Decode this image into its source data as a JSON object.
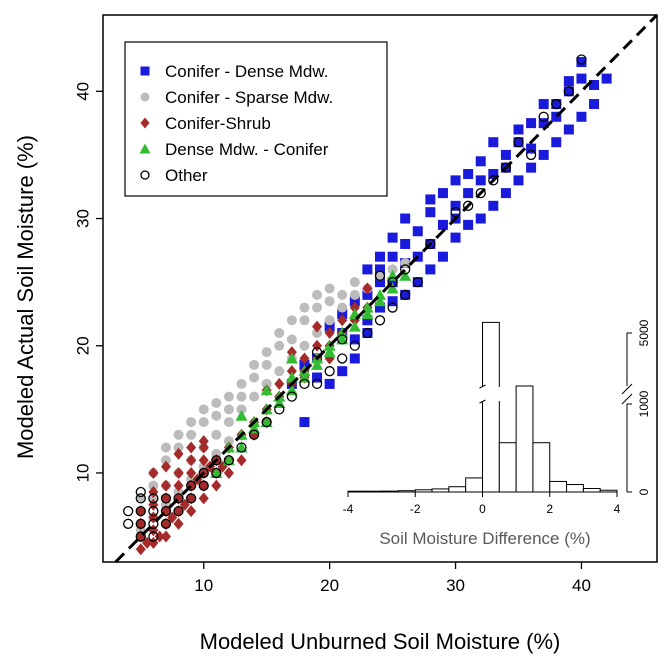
{
  "chart_data": {
    "type": "scatter",
    "xlabel": "Modeled Unburned Soil Moisture (%)",
    "ylabel": "Modeled Actual Soil Moisture (%)",
    "xlim": [
      2,
      46
    ],
    "ylim": [
      3,
      46
    ],
    "xticks": [
      10,
      20,
      30,
      40
    ],
    "yticks": [
      10,
      20,
      30,
      40
    ],
    "reference_line": "1:1 dashed line",
    "legend_position": "top-left",
    "series": [
      {
        "name": "Conifer - Dense Mdw.",
        "marker": "square",
        "color": "#1a1adc",
        "points": [
          [
            18,
            14
          ],
          [
            19,
            17.5
          ],
          [
            20,
            17
          ],
          [
            21,
            18
          ],
          [
            22,
            19
          ],
          [
            21,
            21
          ],
          [
            22,
            20.5
          ],
          [
            23,
            22
          ],
          [
            23,
            21
          ],
          [
            24,
            23
          ],
          [
            25,
            23.5
          ],
          [
            25,
            25
          ],
          [
            24,
            26
          ],
          [
            26,
            24
          ],
          [
            26,
            26.5
          ],
          [
            27,
            25
          ],
          [
            27,
            27
          ],
          [
            28,
            26
          ],
          [
            28,
            28
          ],
          [
            29,
            27
          ],
          [
            29,
            29.5
          ],
          [
            30,
            28.5
          ],
          [
            30,
            31
          ],
          [
            30,
            33
          ],
          [
            31,
            29.5
          ],
          [
            31,
            32
          ],
          [
            32,
            30
          ],
          [
            32,
            33
          ],
          [
            33,
            31
          ],
          [
            33,
            33.5
          ],
          [
            34,
            32
          ],
          [
            34,
            34
          ],
          [
            35,
            33
          ],
          [
            35,
            36
          ],
          [
            36,
            34
          ],
          [
            36,
            35.5
          ],
          [
            37,
            35
          ],
          [
            37,
            37.5
          ],
          [
            38,
            36
          ],
          [
            38,
            38
          ],
          [
            39,
            37
          ],
          [
            39,
            40
          ],
          [
            40,
            38
          ],
          [
            40,
            41
          ],
          [
            41,
            39
          ],
          [
            41,
            40.5
          ],
          [
            42,
            41
          ],
          [
            38,
            39
          ],
          [
            36,
            37.5
          ],
          [
            33,
            36
          ],
          [
            32,
            34.5
          ],
          [
            31,
            33.5
          ],
          [
            29,
            32
          ],
          [
            28,
            30.5
          ],
          [
            27,
            29
          ],
          [
            26,
            28
          ],
          [
            25,
            27
          ],
          [
            24,
            25
          ],
          [
            23,
            24
          ],
          [
            22,
            23.5
          ],
          [
            21,
            22.5
          ],
          [
            20,
            21.5
          ],
          [
            19,
            19
          ],
          [
            18,
            18.5
          ],
          [
            17,
            17
          ],
          [
            37,
            39
          ],
          [
            35,
            37
          ],
          [
            34,
            35
          ],
          [
            39,
            40.8
          ],
          [
            40,
            42.3
          ],
          [
            26,
            30
          ],
          [
            28,
            31.5
          ],
          [
            30,
            30
          ],
          [
            25,
            28.5
          ],
          [
            24,
            27
          ],
          [
            23,
            26
          ]
        ]
      },
      {
        "name": "Conifer - Sparse Mdw.",
        "marker": "circle",
        "color": "#bcbcbc",
        "points": [
          [
            5,
            7
          ],
          [
            6,
            8
          ],
          [
            6,
            10
          ],
          [
            7,
            9
          ],
          [
            7,
            11
          ],
          [
            8,
            10
          ],
          [
            8,
            12
          ],
          [
            9,
            11
          ],
          [
            9,
            13
          ],
          [
            10,
            12
          ],
          [
            10,
            14
          ],
          [
            11,
            13
          ],
          [
            11,
            14.5
          ],
          [
            12,
            14
          ],
          [
            12,
            15
          ],
          [
            13,
            15
          ],
          [
            13,
            16
          ],
          [
            14,
            16
          ],
          [
            14,
            17.5
          ],
          [
            15,
            17
          ],
          [
            15,
            18.5
          ],
          [
            16,
            18
          ],
          [
            16,
            20
          ],
          [
            17,
            19
          ],
          [
            17,
            20.5
          ],
          [
            18,
            20
          ],
          [
            18,
            22
          ],
          [
            19,
            21
          ],
          [
            19,
            23
          ],
          [
            20,
            22
          ],
          [
            20,
            23.5
          ],
          [
            21,
            23
          ],
          [
            21,
            24
          ],
          [
            22,
            24
          ],
          [
            22,
            25
          ],
          [
            23,
            24.5
          ],
          [
            24,
            25.5
          ],
          [
            25,
            26
          ],
          [
            26,
            26.5
          ],
          [
            7,
            12
          ],
          [
            8,
            13
          ],
          [
            9,
            14
          ],
          [
            10,
            15
          ],
          [
            11,
            15.5
          ],
          [
            12,
            16
          ],
          [
            13,
            17
          ],
          [
            14,
            18.5
          ],
          [
            15,
            19.5
          ],
          [
            16,
            21
          ],
          [
            17,
            22
          ],
          [
            18,
            23
          ],
          [
            19,
            24
          ],
          [
            20,
            24.5
          ],
          [
            6,
            9
          ],
          [
            5,
            8
          ],
          [
            9,
            9.5
          ],
          [
            10,
            10.5
          ],
          [
            11,
            11.5
          ],
          [
            12,
            12.5
          ],
          [
            6,
            6.5
          ],
          [
            5,
            5.5
          ],
          [
            7,
            7.5
          ],
          [
            8,
            8.5
          ]
        ]
      },
      {
        "name": "Conifer-Shrub",
        "marker": "diamond",
        "color": "#a52a2a",
        "points": [
          [
            5,
            4
          ],
          [
            5,
            5
          ],
          [
            5,
            6
          ],
          [
            5,
            7
          ],
          [
            6,
            4.5
          ],
          [
            6,
            5.5
          ],
          [
            6,
            6.5
          ],
          [
            6,
            7.5
          ],
          [
            6,
            8.5
          ],
          [
            7,
            5
          ],
          [
            7,
            6
          ],
          [
            7,
            7
          ],
          [
            7,
            8
          ],
          [
            7,
            9
          ],
          [
            8,
            6
          ],
          [
            8,
            7
          ],
          [
            8,
            8
          ],
          [
            8,
            9
          ],
          [
            8,
            10
          ],
          [
            9,
            7
          ],
          [
            9,
            8
          ],
          [
            9,
            9
          ],
          [
            9,
            10
          ],
          [
            9,
            11
          ],
          [
            10,
            8
          ],
          [
            10,
            9
          ],
          [
            10,
            10
          ],
          [
            10,
            11
          ],
          [
            10,
            12
          ],
          [
            11,
            9
          ],
          [
            11,
            10
          ],
          [
            11,
            11
          ],
          [
            12,
            10
          ],
          [
            12,
            11
          ],
          [
            12,
            12
          ],
          [
            13,
            11
          ],
          [
            13,
            13
          ],
          [
            14,
            13
          ],
          [
            14,
            14
          ],
          [
            15,
            14
          ],
          [
            15,
            15
          ],
          [
            16,
            16
          ],
          [
            16,
            17
          ],
          [
            17,
            17
          ],
          [
            17,
            18
          ],
          [
            18,
            18
          ],
          [
            18,
            19
          ],
          [
            19,
            19
          ],
          [
            19,
            20
          ],
          [
            20,
            20
          ],
          [
            20,
            21
          ],
          [
            21,
            21
          ],
          [
            21,
            22
          ],
          [
            22,
            22
          ],
          [
            22,
            23
          ],
          [
            23,
            23
          ],
          [
            23,
            24.5
          ],
          [
            19,
            21.5
          ],
          [
            17,
            19.5
          ],
          [
            15,
            16.5
          ],
          [
            18,
            17.5
          ],
          [
            20,
            19
          ],
          [
            5.5,
            4.5
          ],
          [
            6.5,
            5
          ],
          [
            7.5,
            6.5
          ],
          [
            8.5,
            7.5
          ],
          [
            9.5,
            9.5
          ],
          [
            10.5,
            10.5
          ],
          [
            11.5,
            10.5
          ],
          [
            6,
            10
          ],
          [
            7,
            10.5
          ],
          [
            8,
            11.5
          ],
          [
            9,
            12
          ],
          [
            10,
            12.5
          ]
        ]
      },
      {
        "name": "Dense Mdw. - Conifer",
        "marker": "triangle",
        "color": "#33bb33",
        "points": [
          [
            11,
            10
          ],
          [
            12,
            11
          ],
          [
            12,
            12
          ],
          [
            13,
            12
          ],
          [
            13,
            13
          ],
          [
            14,
            13.5
          ],
          [
            14,
            14
          ],
          [
            15,
            14
          ],
          [
            15,
            15
          ],
          [
            16,
            15.5
          ],
          [
            16,
            16
          ],
          [
            17,
            16.5
          ],
          [
            17,
            17.5
          ],
          [
            18,
            17.5
          ],
          [
            18,
            18
          ],
          [
            19,
            18.5
          ],
          [
            19,
            19
          ],
          [
            20,
            19.5
          ],
          [
            20,
            20
          ],
          [
            21,
            20.5
          ],
          [
            21,
            21
          ],
          [
            22,
            21.5
          ],
          [
            22,
            22.5
          ],
          [
            23,
            22.5
          ],
          [
            23,
            23
          ],
          [
            24,
            23.5
          ],
          [
            24,
            24
          ],
          [
            25,
            24.5
          ],
          [
            25,
            25.5
          ],
          [
            26,
            25.5
          ],
          [
            17,
            19
          ],
          [
            15,
            16.5
          ],
          [
            13,
            14.5
          ]
        ]
      },
      {
        "name": "Other",
        "marker": "open-circle",
        "color": "#000000",
        "points": [
          [
            5,
            5
          ],
          [
            5,
            6
          ],
          [
            5,
            7
          ],
          [
            5,
            8
          ],
          [
            6,
            5
          ],
          [
            6,
            6
          ],
          [
            6,
            7
          ],
          [
            6,
            8
          ],
          [
            7,
            6
          ],
          [
            7,
            7
          ],
          [
            7,
            8
          ],
          [
            8,
            7
          ],
          [
            8,
            8
          ],
          [
            9,
            8
          ],
          [
            9,
            9
          ],
          [
            10,
            9
          ],
          [
            10,
            10
          ],
          [
            11,
            10
          ],
          [
            11,
            11
          ],
          [
            12,
            11
          ],
          [
            13,
            12
          ],
          [
            14,
            13
          ],
          [
            15,
            14
          ],
          [
            16,
            15
          ],
          [
            17,
            16
          ],
          [
            18,
            17
          ],
          [
            19,
            17
          ],
          [
            20,
            18
          ],
          [
            21,
            19
          ],
          [
            22,
            20
          ],
          [
            23,
            21
          ],
          [
            24,
            22
          ],
          [
            25,
            23
          ],
          [
            26,
            24
          ],
          [
            27,
            25
          ],
          [
            26,
            26
          ],
          [
            24,
            25.5
          ],
          [
            25,
            25
          ],
          [
            33,
            33
          ],
          [
            34,
            34
          ],
          [
            36,
            35
          ],
          [
            38,
            39
          ],
          [
            39,
            40
          ],
          [
            40,
            42.5
          ],
          [
            35,
            36
          ],
          [
            37,
            38
          ],
          [
            31,
            31
          ],
          [
            32,
            32
          ],
          [
            30,
            30.5
          ],
          [
            28,
            28
          ],
          [
            21,
            20.5
          ],
          [
            19,
            19.5
          ],
          [
            4,
            6
          ],
          [
            4,
            7
          ],
          [
            5,
            8.5
          ]
        ]
      }
    ]
  },
  "inset": {
    "type": "histogram",
    "xlabel": "Soil Moisture Difference (%)",
    "xlim": [
      -4,
      4
    ],
    "xticks": [
      -4,
      -2,
      0,
      2,
      4
    ],
    "yticks": [
      0,
      1000,
      5000
    ],
    "axis_break": "between 1000 and 5000",
    "bin_width": 0.5,
    "bins": [
      {
        "from": -4.0,
        "to": -3.5,
        "count": 5
      },
      {
        "from": -3.5,
        "to": -3.0,
        "count": 8
      },
      {
        "from": -3.0,
        "to": -2.5,
        "count": 10
      },
      {
        "from": -2.5,
        "to": -2.0,
        "count": 15
      },
      {
        "from": -2.0,
        "to": -1.5,
        "count": 25
      },
      {
        "from": -1.5,
        "to": -1.0,
        "count": 35
      },
      {
        "from": -1.0,
        "to": -0.5,
        "count": 60
      },
      {
        "from": -0.5,
        "to": 0.0,
        "count": 160
      },
      {
        "from": 0.0,
        "to": 0.5,
        "count": 5200
      },
      {
        "from": 0.5,
        "to": 1.0,
        "count": 560
      },
      {
        "from": 1.0,
        "to": 1.5,
        "count": 1150
      },
      {
        "from": 1.5,
        "to": 2.0,
        "count": 560
      },
      {
        "from": 2.0,
        "to": 2.5,
        "count": 120
      },
      {
        "from": 2.5,
        "to": 3.0,
        "count": 85
      },
      {
        "from": 3.0,
        "to": 3.5,
        "count": 40
      },
      {
        "from": 3.5,
        "to": 4.0,
        "count": 20
      }
    ]
  }
}
